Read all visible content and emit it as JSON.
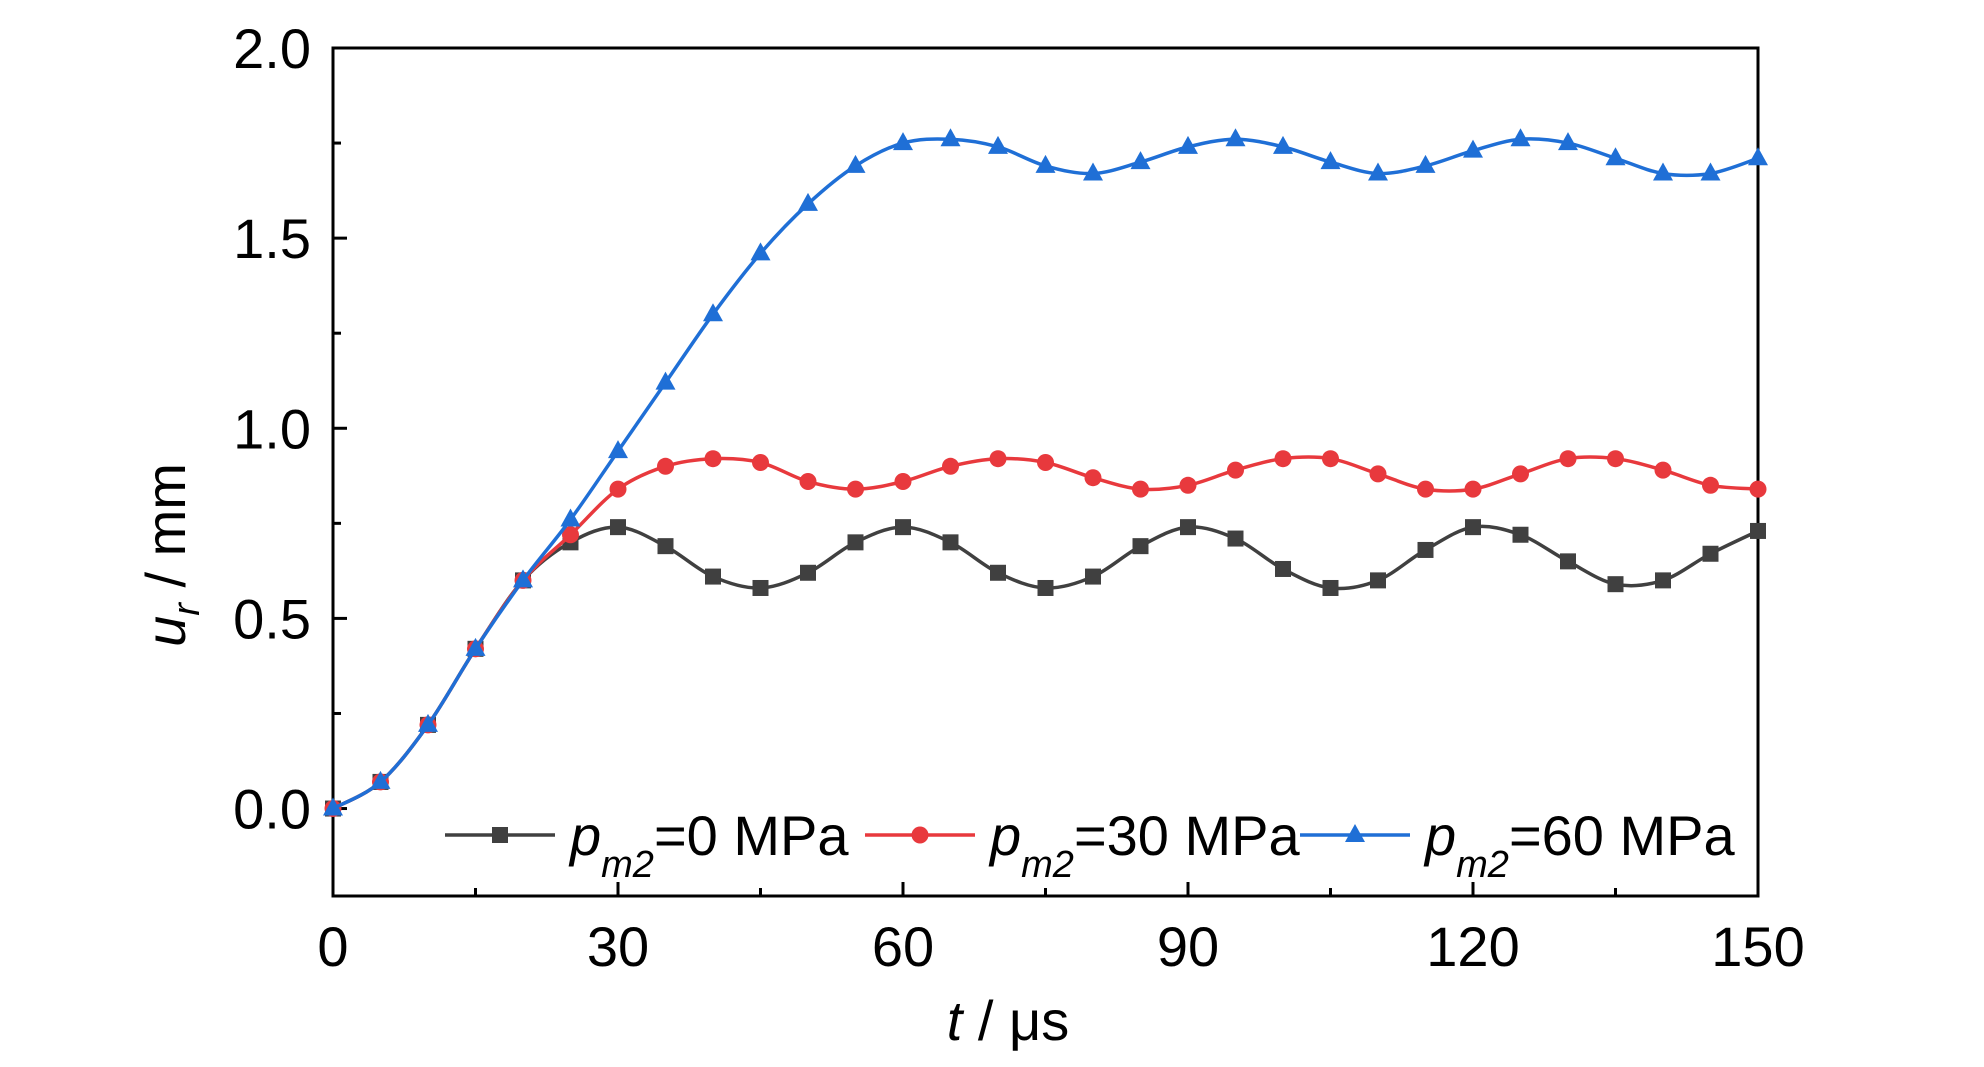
{
  "chart_data": {
    "type": "line",
    "title": "",
    "xlabel": {
      "symbol": "t",
      "rest": " / μs"
    },
    "ylabel": {
      "symbol": "u",
      "subscript": "r",
      "rest": " / mm"
    },
    "xlim": [
      0,
      150
    ],
    "ylim": [
      -0.23,
      2.0
    ],
    "x_ticks": [
      0,
      30,
      60,
      90,
      120,
      150
    ],
    "x_tick_labels": [
      "0",
      "30",
      "60",
      "90",
      "120",
      "150"
    ],
    "y_ticks": [
      0.0,
      0.5,
      1.0,
      1.5,
      2.0
    ],
    "y_tick_labels": [
      "0.0",
      "0.5",
      "1.0",
      "1.5",
      "2.0"
    ],
    "grid": false,
    "legend_position": "bottom",
    "x": [
      0,
      5,
      10,
      15,
      20,
      25,
      30,
      35,
      40,
      45,
      50,
      55,
      60,
      65,
      70,
      75,
      80,
      85,
      90,
      95,
      100,
      105,
      110,
      115,
      120,
      125,
      130,
      135,
      140,
      145,
      150
    ],
    "series": [
      {
        "name": "=0 MPa",
        "legend": {
          "symbol": "p",
          "subscript": "m2",
          "rest": "=0 MPa"
        },
        "color": "#404040",
        "marker": "square",
        "values": [
          0.0,
          0.07,
          0.22,
          0.42,
          0.6,
          0.7,
          0.74,
          0.69,
          0.61,
          0.58,
          0.62,
          0.7,
          0.74,
          0.7,
          0.62,
          0.58,
          0.61,
          0.69,
          0.74,
          0.71,
          0.63,
          0.58,
          0.6,
          0.68,
          0.74,
          0.72,
          0.65,
          0.59,
          0.6,
          0.67,
          0.73
        ]
      },
      {
        "name": "=30 MPa",
        "legend": {
          "symbol": "p",
          "subscript": "m2",
          "rest": "=30 MPa"
        },
        "color": "#e8393d",
        "marker": "circle",
        "values": [
          0.0,
          0.07,
          0.22,
          0.42,
          0.6,
          0.72,
          0.84,
          0.9,
          0.92,
          0.91,
          0.86,
          0.84,
          0.86,
          0.9,
          0.92,
          0.91,
          0.87,
          0.84,
          0.85,
          0.89,
          0.92,
          0.92,
          0.88,
          0.84,
          0.84,
          0.88,
          0.92,
          0.92,
          0.89,
          0.85,
          0.84
        ]
      },
      {
        "name": "=60 MPa",
        "legend": {
          "symbol": "p",
          "subscript": "m2",
          "rest": "=60 MPa"
        },
        "color": "#1f6fd6",
        "marker": "triangle",
        "values": [
          0.0,
          0.07,
          0.22,
          0.42,
          0.6,
          0.76,
          0.94,
          1.12,
          1.3,
          1.46,
          1.59,
          1.69,
          1.75,
          1.76,
          1.74,
          1.69,
          1.67,
          1.7,
          1.74,
          1.76,
          1.74,
          1.7,
          1.67,
          1.69,
          1.73,
          1.76,
          1.75,
          1.71,
          1.67,
          1.67,
          1.71
        ]
      }
    ]
  }
}
